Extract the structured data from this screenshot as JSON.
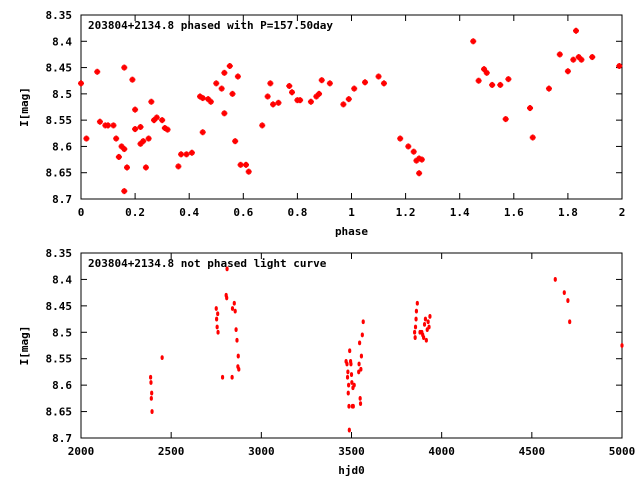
{
  "colors": {
    "points": "#ff0000",
    "axes": "#000000"
  },
  "chart_data": [
    {
      "type": "scatter",
      "title": "203804+2134.8 phased with P=157.50day",
      "xlabel": "phase",
      "ylabel": "I[mag]",
      "xlim": [
        0,
        2
      ],
      "ylim": [
        8.35,
        8.7
      ],
      "y_inverted": true,
      "grid": false,
      "xticks": [
        "0",
        "0.2",
        "0.4",
        "0.6",
        "0.8",
        "1",
        "1.2",
        "1.4",
        "1.6",
        "1.8",
        "2"
      ],
      "yticks": [
        "8.35",
        "8.4",
        "8.45",
        "8.5",
        "8.55",
        "8.6",
        "8.65",
        "8.7"
      ],
      "series": [
        {
          "marker": "cross-dot",
          "points": [
            [
              0.0,
              8.48
            ],
            [
              0.02,
              8.585
            ],
            [
              0.06,
              8.458
            ],
            [
              0.07,
              8.553
            ],
            [
              0.09,
              8.56
            ],
            [
              0.1,
              8.56
            ],
            [
              0.12,
              8.56
            ],
            [
              0.13,
              8.585
            ],
            [
              0.14,
              8.62
            ],
            [
              0.15,
              8.6
            ],
            [
              0.16,
              8.45
            ],
            [
              0.16,
              8.605
            ],
            [
              0.16,
              8.685
            ],
            [
              0.17,
              8.64
            ],
            [
              0.19,
              8.473
            ],
            [
              0.2,
              8.53
            ],
            [
              0.2,
              8.567
            ],
            [
              0.22,
              8.563
            ],
            [
              0.22,
              8.595
            ],
            [
              0.23,
              8.59
            ],
            [
              0.24,
              8.64
            ],
            [
              0.25,
              8.585
            ],
            [
              0.26,
              8.515
            ],
            [
              0.27,
              8.55
            ],
            [
              0.28,
              8.545
            ],
            [
              0.3,
              8.55
            ],
            [
              0.31,
              8.565
            ],
            [
              0.32,
              8.568
            ],
            [
              0.36,
              8.638
            ],
            [
              0.37,
              8.615
            ],
            [
              0.39,
              8.615
            ],
            [
              0.41,
              8.612
            ],
            [
              0.44,
              8.505
            ],
            [
              0.45,
              8.508
            ],
            [
              0.45,
              8.573
            ],
            [
              0.47,
              8.51
            ],
            [
              0.48,
              8.515
            ],
            [
              0.5,
              8.48
            ],
            [
              0.52,
              8.49
            ],
            [
              0.53,
              8.537
            ],
            [
              0.53,
              8.46
            ],
            [
              0.55,
              8.447
            ],
            [
              0.56,
              8.5
            ],
            [
              0.57,
              8.59
            ],
            [
              0.58,
              8.467
            ],
            [
              0.59,
              8.635
            ],
            [
              0.61,
              8.635
            ],
            [
              0.62,
              8.648
            ],
            [
              0.67,
              8.56
            ],
            [
              0.69,
              8.505
            ],
            [
              0.7,
              8.48
            ],
            [
              0.71,
              8.52
            ],
            [
              0.73,
              8.517
            ],
            [
              0.77,
              8.485
            ],
            [
              0.78,
              8.497
            ],
            [
              0.8,
              8.512
            ],
            [
              0.81,
              8.512
            ],
            [
              0.85,
              8.515
            ],
            [
              0.87,
              8.505
            ],
            [
              0.88,
              8.5
            ],
            [
              0.89,
              8.474
            ],
            [
              0.92,
              8.48
            ],
            [
              0.97,
              8.52
            ],
            [
              0.99,
              8.51
            ],
            [
              1.01,
              8.49
            ],
            [
              1.05,
              8.478
            ],
            [
              1.1,
              8.467
            ],
            [
              1.12,
              8.48
            ],
            [
              1.18,
              8.585
            ],
            [
              1.21,
              8.6
            ],
            [
              1.23,
              8.61
            ],
            [
              1.24,
              8.627
            ],
            [
              1.25,
              8.623
            ],
            [
              1.25,
              8.651
            ],
            [
              1.26,
              8.625
            ],
            [
              1.45,
              8.4
            ],
            [
              1.47,
              8.475
            ],
            [
              1.49,
              8.453
            ],
            [
              1.5,
              8.46
            ],
            [
              1.52,
              8.483
            ],
            [
              1.55,
              8.483
            ],
            [
              1.57,
              8.548
            ],
            [
              1.58,
              8.472
            ],
            [
              1.66,
              8.527
            ],
            [
              1.67,
              8.583
            ],
            [
              1.73,
              8.49
            ],
            [
              1.77,
              8.425
            ],
            [
              1.8,
              8.457
            ],
            [
              1.82,
              8.435
            ],
            [
              1.83,
              8.38
            ],
            [
              1.84,
              8.43
            ],
            [
              1.85,
              8.435
            ],
            [
              1.89,
              8.43
            ],
            [
              1.99,
              8.447
            ]
          ]
        }
      ]
    },
    {
      "type": "scatter",
      "title": "203804+2134.8 not phased light curve",
      "xlabel": "hjd0",
      "ylabel": "I[mag]",
      "xlim": [
        2000,
        5000
      ],
      "ylim": [
        8.35,
        8.7
      ],
      "y_inverted": true,
      "grid": false,
      "xticks": [
        "2000",
        "2500",
        "3000",
        "3500",
        "4000",
        "4500",
        "5000"
      ],
      "yticks": [
        "8.35",
        "8.4",
        "8.45",
        "8.5",
        "8.55",
        "8.6",
        "8.65",
        "8.7"
      ],
      "series": [
        {
          "marker": "dot",
          "points": [
            [
              2386,
              8.585
            ],
            [
              2388,
              8.595
            ],
            [
              2390,
              8.625
            ],
            [
              2392,
              8.615
            ],
            [
              2394,
              8.65
            ],
            [
              2450,
              8.548
            ],
            [
              2750,
              8.455
            ],
            [
              2752,
              8.475
            ],
            [
              2755,
              8.49
            ],
            [
              2758,
              8.465
            ],
            [
              2760,
              8.5
            ],
            [
              2785,
              8.585
            ],
            [
              2805,
              8.43
            ],
            [
              2808,
              8.435
            ],
            [
              2810,
              8.38
            ],
            [
              2838,
              8.585
            ],
            [
              2840,
              8.455
            ],
            [
              2850,
              8.445
            ],
            [
              2855,
              8.46
            ],
            [
              2860,
              8.495
            ],
            [
              2865,
              8.515
            ],
            [
              2870,
              8.565
            ],
            [
              2875,
              8.57
            ],
            [
              2872,
              8.545
            ],
            [
              3470,
              8.555
            ],
            [
              3475,
              8.56
            ],
            [
              3478,
              8.585
            ],
            [
              3480,
              8.575
            ],
            [
              3482,
              8.615
            ],
            [
              3484,
              8.6
            ],
            [
              3486,
              8.64
            ],
            [
              3488,
              8.685
            ],
            [
              3490,
              8.535
            ],
            [
              3495,
              8.555
            ],
            [
              3497,
              8.56
            ],
            [
              3500,
              8.58
            ],
            [
              3502,
              8.595
            ],
            [
              3505,
              8.64
            ],
            [
              3508,
              8.605
            ],
            [
              3510,
              8.64
            ],
            [
              3515,
              8.6
            ],
            [
              3540,
              8.575
            ],
            [
              3542,
              8.56
            ],
            [
              3545,
              8.52
            ],
            [
              3548,
              8.625
            ],
            [
              3550,
              8.635
            ],
            [
              3552,
              8.57
            ],
            [
              3555,
              8.545
            ],
            [
              3560,
              8.505
            ],
            [
              3565,
              8.48
            ],
            [
              3850,
              8.5
            ],
            [
              3853,
              8.51
            ],
            [
              3855,
              8.49
            ],
            [
              3858,
              8.475
            ],
            [
              3860,
              8.46
            ],
            [
              3865,
              8.445
            ],
            [
              3880,
              8.5
            ],
            [
              3890,
              8.5
            ],
            [
              3895,
              8.505
            ],
            [
              3900,
              8.51
            ],
            [
              3905,
              8.485
            ],
            [
              3910,
              8.475
            ],
            [
              3915,
              8.515
            ],
            [
              3920,
              8.495
            ],
            [
              3925,
              8.48
            ],
            [
              3930,
              8.49
            ],
            [
              3935,
              8.47
            ],
            [
              4630,
              8.4
            ],
            [
              4680,
              8.425
            ],
            [
              4700,
              8.44
            ],
            [
              4710,
              8.48
            ],
            [
              5000,
              8.525
            ]
          ]
        }
      ]
    }
  ]
}
